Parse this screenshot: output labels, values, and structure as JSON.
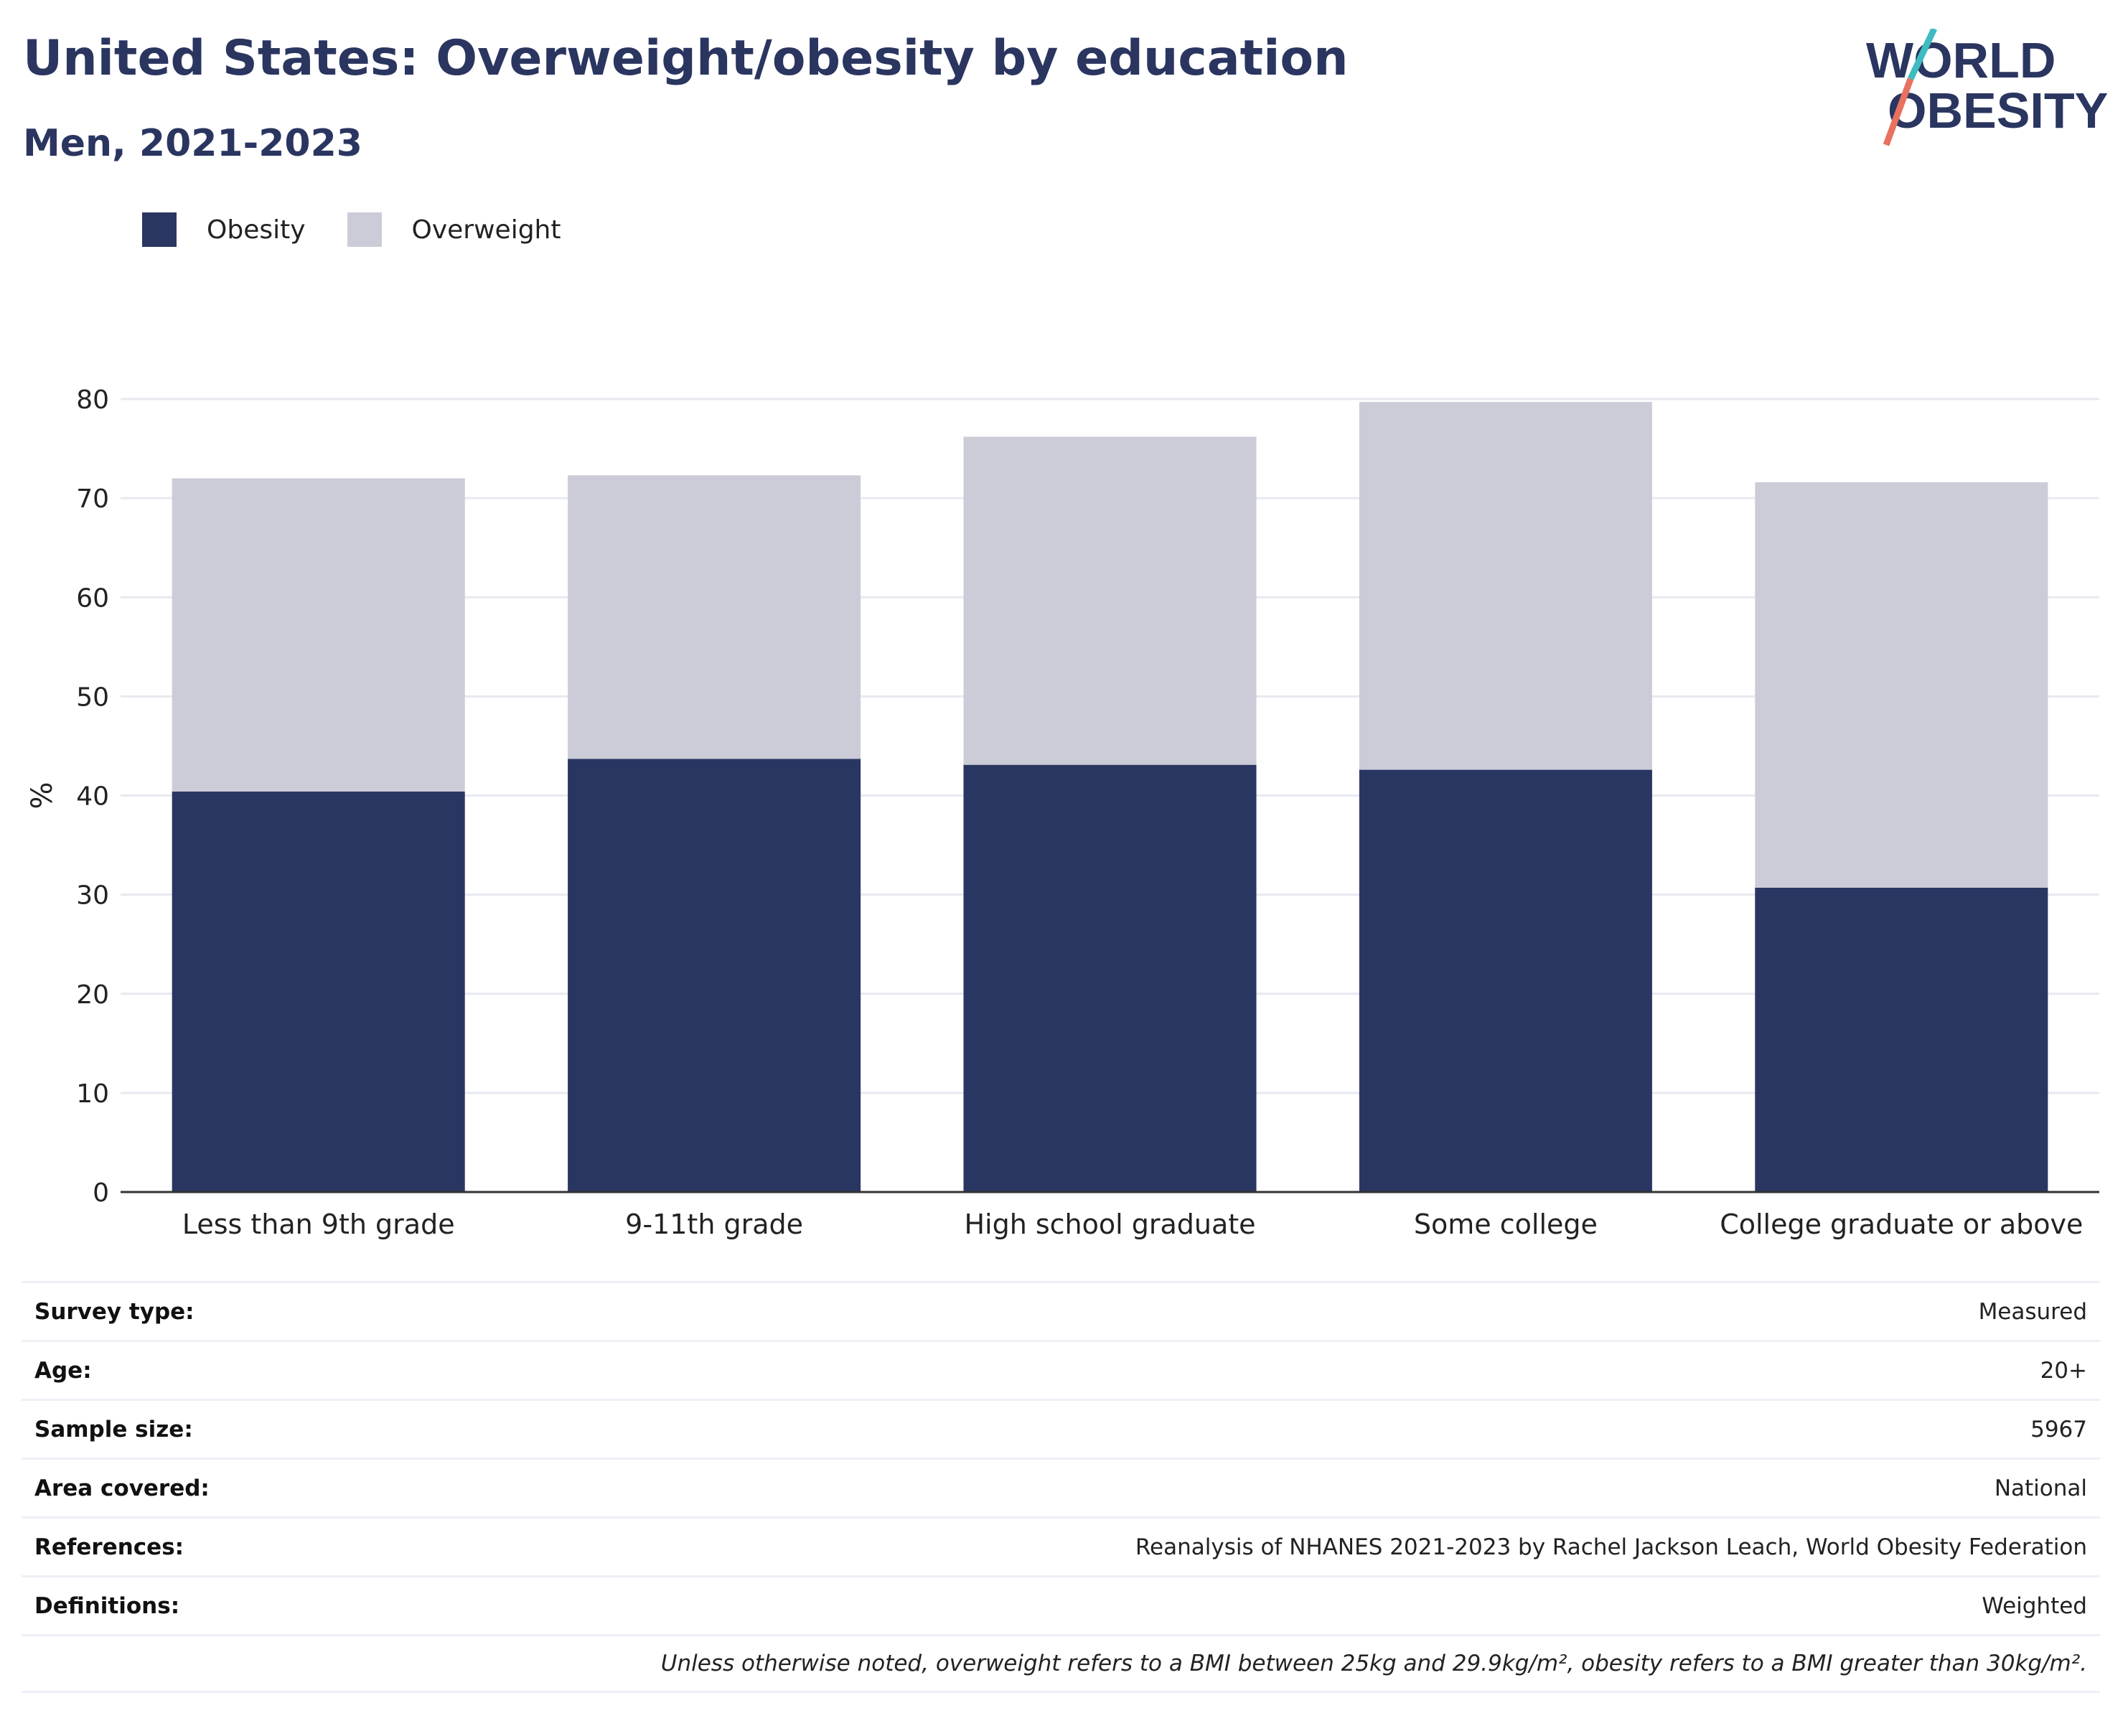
{
  "header": {
    "title": "United States: Overweight/obesity by education",
    "subtitle": "Men, 2021-2023",
    "logo_line1": "WORLD",
    "logo_line2": "OBESITY"
  },
  "legend": [
    {
      "label": "Obesity",
      "color": "#2a3662"
    },
    {
      "label": "Overweight",
      "color": "#cbccd8"
    }
  ],
  "chart_data": {
    "type": "bar",
    "stacked": true,
    "categories": [
      "Less than 9th grade",
      "9-11th grade",
      "High school graduate",
      "Some college",
      "College graduate or above"
    ],
    "series": [
      {
        "name": "Obesity",
        "color": "#2a3662",
        "values": [
          40.4,
          43.7,
          43.1,
          42.6,
          30.7
        ]
      },
      {
        "name": "Overweight",
        "color": "#cbccd8",
        "values": [
          31.6,
          28.6,
          33.1,
          37.1,
          40.9
        ]
      }
    ],
    "ylabel": "%",
    "ylim": [
      0,
      80
    ],
    "yticks": [
      0,
      10,
      20,
      30,
      40,
      50,
      60,
      70,
      80
    ],
    "grid": true,
    "legend_position": "top-left"
  },
  "meta": {
    "rows": [
      {
        "key": "Survey type:",
        "value": "Measured"
      },
      {
        "key": "Age:",
        "value": "20+"
      },
      {
        "key": "Sample size:",
        "value": "5967"
      },
      {
        "key": "Area covered:",
        "value": "National"
      },
      {
        "key": "References:",
        "value": "Reanalysis of NHANES 2021-2023 by Rachel Jackson Leach, World Obesity Federation"
      },
      {
        "key": "Definitions:",
        "value": "Weighted"
      }
    ],
    "note": "Unless otherwise noted, overweight refers to a BMI between 25kg and 29.9kg/m², obesity refers to a BMI greater than 30kg/m²."
  }
}
